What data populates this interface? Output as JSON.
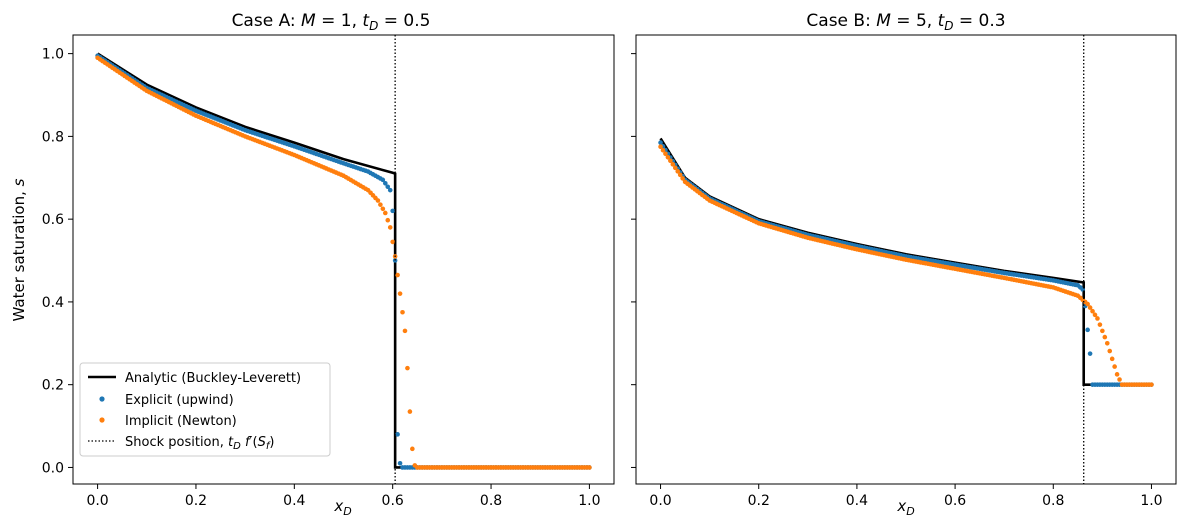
{
  "chart_data": [
    {
      "type": "scatter",
      "title": "Case A:  M = 1,  tD = 0.5",
      "title_parts": {
        "prefix": "Case A:  ",
        "param1_sym": "M",
        "param1_val": " = 1,  ",
        "param2_sym": "t",
        "param2_sub": "D",
        "param2_val": " = 0.5"
      },
      "xlabel": "xD",
      "xlabel_parts": {
        "sym": "x",
        "sub": "D"
      },
      "ylabel": "Water saturation, s",
      "ylabel_parts": {
        "text": "Water saturation, ",
        "sym": "s"
      },
      "xlim": [
        -0.05,
        1.05
      ],
      "ylim": [
        -0.04,
        1.045
      ],
      "xticks": [
        0.0,
        0.2,
        0.4,
        0.6,
        0.8,
        1.0
      ],
      "xtick_labels": [
        "0.0",
        "0.2",
        "0.4",
        "0.6",
        "0.8",
        "1.0"
      ],
      "yticks": [
        0.0,
        0.2,
        0.4,
        0.6,
        0.8,
        1.0
      ],
      "ytick_labels": [
        "0.0",
        "0.2",
        "0.4",
        "0.6",
        "0.8",
        "1.0"
      ],
      "shock_position": 0.605,
      "swi": 0.0,
      "series": [
        {
          "name": "Analytic (Buckley-Leverett)",
          "kind": "line",
          "color": "#000000",
          "x": [
            0.0,
            0.1,
            0.2,
            0.3,
            0.4,
            0.5,
            0.6,
            0.605,
            0.605,
            1.0
          ],
          "y": [
            1.0,
            0.925,
            0.87,
            0.823,
            0.785,
            0.745,
            0.712,
            0.71,
            0.0,
            0.0
          ]
        },
        {
          "name": "Explicit (upwind)",
          "kind": "points",
          "color": "#1f77b4",
          "x": [
            0.0,
            0.1,
            0.2,
            0.3,
            0.4,
            0.5,
            0.55,
            0.58,
            0.595,
            0.6,
            0.605,
            0.61,
            0.615,
            0.62,
            1.0
          ],
          "y": [
            0.995,
            0.917,
            0.862,
            0.815,
            0.776,
            0.735,
            0.715,
            0.695,
            0.67,
            0.62,
            0.5,
            0.08,
            0.01,
            0.0,
            0.0
          ]
        },
        {
          "name": "Implicit (Newton)",
          "kind": "points",
          "color": "#ff7f0e",
          "x": [
            0.0,
            0.1,
            0.2,
            0.3,
            0.4,
            0.5,
            0.55,
            0.57,
            0.585,
            0.595,
            0.605,
            0.615,
            0.625,
            0.63,
            0.635,
            0.64,
            0.645,
            0.65,
            1.0
          ],
          "y": [
            0.99,
            0.91,
            0.85,
            0.8,
            0.755,
            0.705,
            0.67,
            0.645,
            0.615,
            0.58,
            0.51,
            0.42,
            0.33,
            0.24,
            0.135,
            0.045,
            0.005,
            0.0,
            0.0
          ]
        }
      ],
      "legend": {
        "placement": "lower left",
        "entries": [
          {
            "label": "Analytic (Buckley-Leverett)"
          },
          {
            "label": "Explicit (upwind)"
          },
          {
            "label": "Implicit (Newton)"
          },
          {
            "label": "Shock position, tD f'(Sf)",
            "parts": {
              "prefix": "Shock position, ",
              "t": "t",
              "tsub": "D",
              "f": " f",
              "prime": "′",
              "paren_open": "(",
              "S": "S",
              "Ssub": "f",
              "paren_close": ")"
            }
          }
        ]
      }
    },
    {
      "type": "scatter",
      "title": "Case B:  M = 5,  tD = 0.3",
      "title_parts": {
        "prefix": "Case B:  ",
        "param1_sym": "M",
        "param1_val": " = 5,  ",
        "param2_sym": "t",
        "param2_sub": "D",
        "param2_val": " = 0.3"
      },
      "xlabel": "xD",
      "xlabel_parts": {
        "sym": "x",
        "sub": "D"
      },
      "xlim": [
        -0.05,
        1.05
      ],
      "ylim": [
        -0.04,
        1.045
      ],
      "xticks": [
        0.0,
        0.2,
        0.4,
        0.6,
        0.8,
        1.0
      ],
      "xtick_labels": [
        "0.0",
        "0.2",
        "0.4",
        "0.6",
        "0.8",
        "1.0"
      ],
      "yticks": [
        0.0,
        0.2,
        0.4,
        0.6,
        0.8,
        1.0
      ],
      "shock_position": 0.862,
      "swi": 0.2,
      "series": [
        {
          "name": "Analytic (Buckley-Leverett)",
          "kind": "line",
          "color": "#000000",
          "x": [
            0.0,
            0.05,
            0.1,
            0.2,
            0.3,
            0.4,
            0.5,
            0.6,
            0.7,
            0.8,
            0.862,
            0.862,
            1.0
          ],
          "y": [
            0.795,
            0.7,
            0.655,
            0.6,
            0.567,
            0.54,
            0.515,
            0.495,
            0.475,
            0.458,
            0.447,
            0.2,
            0.2
          ]
        },
        {
          "name": "Explicit (upwind)",
          "kind": "points",
          "color": "#1f77b4",
          "x": [
            0.0,
            0.05,
            0.1,
            0.2,
            0.3,
            0.4,
            0.5,
            0.6,
            0.7,
            0.8,
            0.85,
            0.86,
            0.865,
            0.875,
            0.88,
            1.0
          ],
          "y": [
            0.785,
            0.695,
            0.65,
            0.595,
            0.562,
            0.535,
            0.51,
            0.49,
            0.47,
            0.452,
            0.44,
            0.43,
            0.39,
            0.275,
            0.2,
            0.2
          ]
        },
        {
          "name": "Implicit (Newton)",
          "kind": "points",
          "color": "#ff7f0e",
          "x": [
            0.0,
            0.05,
            0.1,
            0.2,
            0.3,
            0.4,
            0.5,
            0.6,
            0.7,
            0.8,
            0.85,
            0.87,
            0.89,
            0.91,
            0.93,
            0.94,
            0.95,
            1.0
          ],
          "y": [
            0.775,
            0.69,
            0.645,
            0.59,
            0.555,
            0.527,
            0.502,
            0.48,
            0.458,
            0.435,
            0.415,
            0.395,
            0.36,
            0.3,
            0.225,
            0.2,
            0.2,
            0.2
          ]
        }
      ]
    }
  ]
}
